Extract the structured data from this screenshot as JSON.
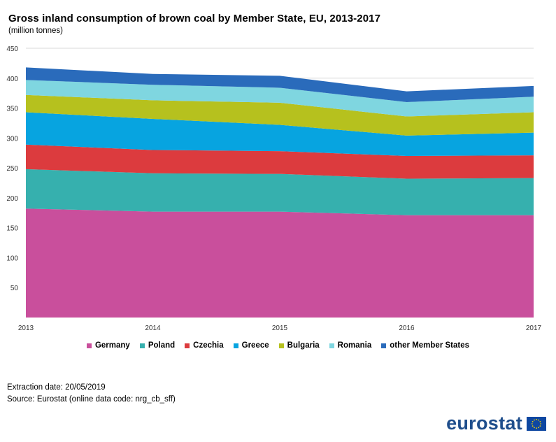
{
  "chart_data": {
    "type": "area",
    "stacked": true,
    "title": "Gross inland consumption of brown coal by Member State, EU, 2013-2017",
    "subtitle": "(million tonnes)",
    "x": [
      "2013",
      "2014",
      "2015",
      "2016",
      "2017"
    ],
    "ylim": [
      0,
      450
    ],
    "yticks": [
      50,
      100,
      150,
      200,
      250,
      300,
      350,
      400,
      450
    ],
    "grid": true,
    "legend_position": "bottom",
    "series": [
      {
        "name": "Germany",
        "color": "#c94f9c",
        "values": [
          182,
          177,
          177,
          171,
          171
        ]
      },
      {
        "name": "Poland",
        "color": "#36b0ae",
        "values": [
          66,
          64,
          63,
          61,
          62
        ]
      },
      {
        "name": "Czechia",
        "color": "#dc3b3e",
        "values": [
          41,
          39,
          38,
          38,
          38
        ]
      },
      {
        "name": "Greece",
        "color": "#07a4e0",
        "values": [
          54,
          52,
          44,
          34,
          38
        ]
      },
      {
        "name": "Bulgaria",
        "color": "#b6c11e",
        "values": [
          29,
          31,
          37,
          32,
          34
        ]
      },
      {
        "name": "Romania",
        "color": "#7fd6e0",
        "values": [
          25,
          26,
          25,
          24,
          26
        ]
      },
      {
        "name": "other Member States",
        "color": "#2a6bbb",
        "values": [
          21,
          18,
          20,
          18,
          18
        ]
      }
    ]
  },
  "footer": {
    "extraction": "Extraction date: 20/05/2019",
    "source": "Source: Eurostat (online data code: nrg_cb_sff)"
  },
  "logo": {
    "text": "eurostat",
    "flag_color": "#0e47a1",
    "star_color": "#f5d400"
  }
}
